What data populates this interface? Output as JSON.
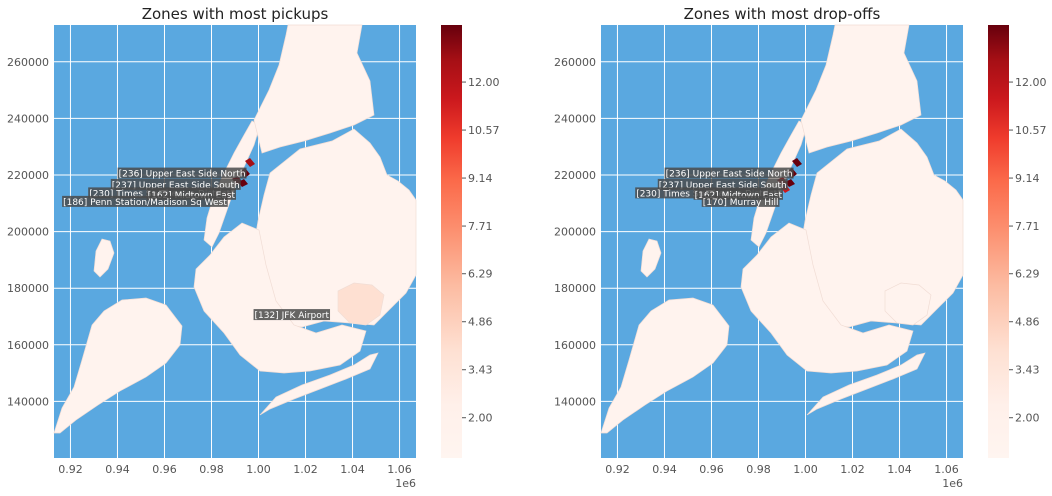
{
  "chart_data": [
    {
      "type": "choropleth",
      "title": "Zones with most pickups",
      "x_offset_label": "1e6",
      "x_ticks": [
        "0.92",
        "0.94",
        "0.96",
        "0.98",
        "1.00",
        "1.02",
        "1.04",
        "1.06"
      ],
      "y_ticks": [
        "140000",
        "160000",
        "180000",
        "200000",
        "220000",
        "240000",
        "260000"
      ],
      "xlim": [
        0.913,
        1.067
      ],
      "ylim": [
        120000,
        273000
      ],
      "colorbar": {
        "colormap": "Reds",
        "ticks": [
          "2.00",
          "3.43",
          "4.86",
          "6.29",
          "7.71",
          "9.14",
          "10.57",
          "12.00"
        ]
      },
      "annotations": [
        {
          "label": "[236] Upper East Side North",
          "x": 0.9945,
          "y": 220500
        },
        {
          "label": "[237] Upper East Side South",
          "x": 0.992,
          "y": 216500
        },
        {
          "label": "[230] Times Sq/Theatre District",
          "x": 0.988,
          "y": 213500
        },
        {
          "label": "[162] Midtown East",
          "x": 0.99,
          "y": 213000
        },
        {
          "label": "[186] Penn Station/Madison Sq West",
          "x": 0.9865,
          "y": 210500
        },
        {
          "label": "[132] JFK Airport",
          "x": 1.03,
          "y": 170500
        }
      ]
    },
    {
      "type": "choropleth",
      "title": "Zones with most drop-offs",
      "x_offset_label": "1e6",
      "x_ticks": [
        "0.92",
        "0.94",
        "0.96",
        "0.98",
        "1.00",
        "1.02",
        "1.04",
        "1.06"
      ],
      "y_ticks": [
        "140000",
        "160000",
        "180000",
        "200000",
        "220000",
        "240000",
        "260000"
      ],
      "xlim": [
        0.913,
        1.067
      ],
      "ylim": [
        120000,
        273000
      ],
      "colorbar": {
        "colormap": "Reds",
        "ticks": [
          "2.00",
          "3.43",
          "4.86",
          "6.29",
          "7.71",
          "9.14",
          "10.57",
          "12.00"
        ]
      },
      "annotations": [
        {
          "label": "[236] Upper East Side North",
          "x": 0.9945,
          "y": 220500
        },
        {
          "label": "[237] Upper East Side South",
          "x": 0.992,
          "y": 216500
        },
        {
          "label": "[230] Times Sq/Theatre District",
          "x": 0.988,
          "y": 213500
        },
        {
          "label": "[162] Midtown East",
          "x": 0.99,
          "y": 213000
        },
        {
          "label": "[170] Murray Hill",
          "x": 0.9885,
          "y": 210500
        }
      ]
    }
  ],
  "colors": {
    "water": "#5aa8e0",
    "land": "#fff3ee",
    "high": "#67000d",
    "mid": "#cb181d",
    "light": "#fcbba1"
  }
}
